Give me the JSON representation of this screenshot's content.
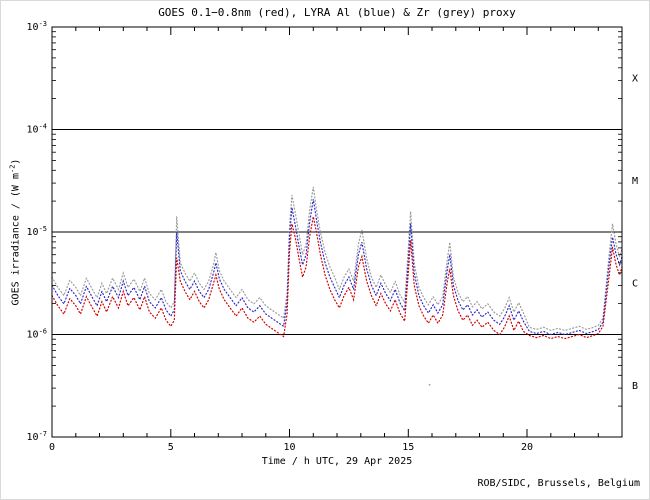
{
  "page": {
    "background": "#ffffff"
  },
  "chart_data": {
    "type": "line",
    "title": "GOES 0.1−0.8nm (red), LYRA Al (blue) & Zr (grey) proxy",
    "xlabel": "Time / h UTC, 29 Apr 2025",
    "ylabel": {
      "prefix": "GOES irradiance / (W m",
      "sup": "-2",
      "suffix": ")"
    },
    "credit": "ROB/SIDC, Brussels, Belgium",
    "axis_color": "#000000",
    "grid": false,
    "legend_position": "in-title",
    "xlim": [
      0,
      24
    ],
    "ylim_log10": [
      -7,
      -3
    ],
    "x_minor_step": 1,
    "x_major_ticks": [
      {
        "value": 0,
        "label": "0"
      },
      {
        "value": 5,
        "label": "5"
      },
      {
        "value": 10,
        "label": "10"
      },
      {
        "value": 15,
        "label": "15"
      },
      {
        "value": 20,
        "label": "20"
      }
    ],
    "y_ticks": [
      {
        "log10": -3,
        "base": "10",
        "exp": "-3"
      },
      {
        "log10": -4,
        "base": "10",
        "exp": "-4"
      },
      {
        "log10": -5,
        "base": "10",
        "exp": "-5"
      },
      {
        "log10": -6,
        "base": "10",
        "exp": "-6"
      },
      {
        "log10": -7,
        "base": "10",
        "exp": "-7"
      }
    ],
    "hlines_log10": [
      -4,
      -5,
      -6
    ],
    "flare_classes": [
      {
        "label": "X",
        "log10": -3.5
      },
      {
        "label": "M",
        "log10": -4.5
      },
      {
        "label": "C",
        "log10": -5.5
      },
      {
        "label": "B",
        "log10": -6.5
      }
    ],
    "x": [
      0.0,
      0.25,
      0.5,
      0.75,
      1.0,
      1.2,
      1.45,
      1.7,
      1.9,
      2.1,
      2.3,
      2.55,
      2.8,
      3.0,
      3.2,
      3.45,
      3.7,
      3.9,
      4.1,
      4.35,
      4.6,
      4.8,
      5.0,
      5.15,
      5.25,
      5.4,
      5.6,
      5.8,
      6.0,
      6.2,
      6.4,
      6.6,
      6.8,
      6.9,
      7.05,
      7.25,
      7.5,
      7.75,
      8.0,
      8.25,
      8.5,
      8.75,
      9.0,
      9.25,
      9.5,
      9.75,
      9.9,
      10.0,
      10.1,
      10.25,
      10.4,
      10.55,
      10.7,
      10.85,
      11.0,
      11.15,
      11.3,
      11.5,
      11.7,
      11.9,
      12.1,
      12.3,
      12.5,
      12.7,
      12.9,
      13.05,
      13.25,
      13.45,
      13.65,
      13.85,
      14.05,
      14.25,
      14.45,
      14.65,
      14.85,
      15.0,
      15.1,
      15.25,
      15.45,
      15.65,
      15.85,
      16.05,
      16.25,
      16.45,
      16.65,
      16.75,
      16.9,
      17.1,
      17.3,
      17.5,
      17.7,
      17.9,
      18.1,
      18.35,
      18.6,
      18.85,
      19.05,
      19.25,
      19.45,
      19.65,
      19.85,
      20.1,
      20.4,
      20.7,
      21.0,
      21.3,
      21.6,
      21.9,
      22.2,
      22.5,
      22.8,
      23.0,
      23.2,
      23.45,
      23.6,
      23.75,
      23.9,
      24.0
    ],
    "series": [
      {
        "id": "goes",
        "name": "GOES 0.1-0.8nm (red)",
        "color": "#d40000",
        "y_log10": [
          -5.62,
          -5.72,
          -5.8,
          -5.65,
          -5.72,
          -5.8,
          -5.63,
          -5.74,
          -5.82,
          -5.68,
          -5.78,
          -5.63,
          -5.74,
          -5.58,
          -5.72,
          -5.64,
          -5.76,
          -5.63,
          -5.78,
          -5.84,
          -5.74,
          -5.86,
          -5.92,
          -5.86,
          -5.25,
          -5.48,
          -5.58,
          -5.66,
          -5.58,
          -5.68,
          -5.74,
          -5.66,
          -5.5,
          -5.42,
          -5.56,
          -5.66,
          -5.74,
          -5.82,
          -5.74,
          -5.84,
          -5.88,
          -5.82,
          -5.9,
          -5.94,
          -5.98,
          -6.02,
          -5.8,
          -5.2,
          -4.92,
          -5.06,
          -5.26,
          -5.44,
          -5.34,
          -5.04,
          -4.85,
          -5.02,
          -5.22,
          -5.42,
          -5.56,
          -5.66,
          -5.74,
          -5.62,
          -5.54,
          -5.66,
          -5.34,
          -5.24,
          -5.48,
          -5.62,
          -5.72,
          -5.6,
          -5.7,
          -5.77,
          -5.66,
          -5.79,
          -5.87,
          -5.4,
          -5.08,
          -5.52,
          -5.72,
          -5.82,
          -5.89,
          -5.81,
          -5.89,
          -5.81,
          -5.48,
          -5.36,
          -5.62,
          -5.77,
          -5.86,
          -5.81,
          -5.91,
          -5.86,
          -5.93,
          -5.88,
          -5.96,
          -6.0,
          -5.93,
          -5.82,
          -5.96,
          -5.87,
          -5.97,
          -6.01,
          -6.03,
          -6.01,
          -6.04,
          -6.02,
          -6.04,
          -6.02,
          -6.0,
          -6.03,
          -6.01,
          -5.99,
          -5.92,
          -5.45,
          -5.15,
          -5.32,
          -5.42,
          -5.34
        ]
      },
      {
        "id": "lyra-al",
        "name": "LYRA Al proxy (blue)",
        "color": "#2c2cc8",
        "y_log10": [
          -5.52,
          -5.62,
          -5.7,
          -5.55,
          -5.62,
          -5.7,
          -5.53,
          -5.64,
          -5.72,
          -5.58,
          -5.68,
          -5.53,
          -5.64,
          -5.48,
          -5.62,
          -5.54,
          -5.66,
          -5.53,
          -5.68,
          -5.74,
          -5.64,
          -5.76,
          -5.82,
          -5.76,
          -5.0,
          -5.38,
          -5.48,
          -5.56,
          -5.48,
          -5.58,
          -5.64,
          -5.56,
          -5.4,
          -5.3,
          -5.46,
          -5.56,
          -5.64,
          -5.72,
          -5.64,
          -5.74,
          -5.78,
          -5.72,
          -5.8,
          -5.84,
          -5.88,
          -5.92,
          -5.68,
          -5.05,
          -4.76,
          -4.94,
          -5.14,
          -5.32,
          -5.22,
          -4.9,
          -4.68,
          -4.9,
          -5.1,
          -5.3,
          -5.44,
          -5.54,
          -5.64,
          -5.52,
          -5.44,
          -5.56,
          -5.22,
          -5.1,
          -5.36,
          -5.52,
          -5.62,
          -5.5,
          -5.6,
          -5.67,
          -5.56,
          -5.69,
          -5.77,
          -5.28,
          -4.92,
          -5.4,
          -5.62,
          -5.72,
          -5.79,
          -5.71,
          -5.79,
          -5.71,
          -5.36,
          -5.22,
          -5.52,
          -5.67,
          -5.76,
          -5.71,
          -5.81,
          -5.76,
          -5.83,
          -5.78,
          -5.86,
          -5.9,
          -5.83,
          -5.72,
          -5.86,
          -5.77,
          -5.87,
          -5.97,
          -5.99,
          -5.97,
          -6.0,
          -5.98,
          -6.0,
          -5.98,
          -5.96,
          -5.99,
          -5.97,
          -5.95,
          -5.88,
          -5.33,
          -5.05,
          -5.22,
          -5.32,
          -5.24
        ]
      },
      {
        "id": "lyra-zr",
        "name": "LYRA Zr proxy (grey)",
        "color": "#9c9c9c",
        "y_log10": [
          -5.44,
          -5.54,
          -5.62,
          -5.47,
          -5.54,
          -5.62,
          -5.45,
          -5.56,
          -5.64,
          -5.5,
          -5.6,
          -5.45,
          -5.56,
          -5.4,
          -5.54,
          -5.46,
          -5.58,
          -5.45,
          -5.6,
          -5.66,
          -5.56,
          -5.68,
          -5.74,
          -5.68,
          -4.85,
          -5.3,
          -5.4,
          -5.48,
          -5.4,
          -5.5,
          -5.56,
          -5.48,
          -5.32,
          -5.2,
          -5.38,
          -5.48,
          -5.56,
          -5.64,
          -5.56,
          -5.66,
          -5.7,
          -5.64,
          -5.72,
          -5.76,
          -5.8,
          -5.84,
          -5.6,
          -4.95,
          -4.64,
          -4.82,
          -5.02,
          -5.22,
          -5.12,
          -4.78,
          -4.56,
          -4.8,
          -5.0,
          -5.2,
          -5.34,
          -5.44,
          -5.56,
          -5.44,
          -5.36,
          -5.48,
          -5.12,
          -4.98,
          -5.26,
          -5.44,
          -5.54,
          -5.42,
          -5.52,
          -5.59,
          -5.48,
          -5.61,
          -5.69,
          -5.16,
          -4.8,
          -5.3,
          -5.54,
          -5.64,
          -5.71,
          -5.63,
          -5.71,
          -5.63,
          -5.26,
          -5.1,
          -5.44,
          -5.59,
          -5.68,
          -5.63,
          -5.73,
          -5.68,
          -5.75,
          -5.7,
          -5.78,
          -5.82,
          -5.75,
          -5.64,
          -5.78,
          -5.69,
          -5.79,
          -5.93,
          -5.95,
          -5.93,
          -5.96,
          -5.94,
          -5.96,
          -5.94,
          -5.92,
          -5.95,
          -5.93,
          -5.91,
          -5.84,
          -5.24,
          -4.92,
          -5.12,
          -5.24,
          -5.16
        ]
      }
    ],
    "outliers": [
      {
        "x": 15.9,
        "log10": -6.49,
        "color": "#9c9c9c"
      }
    ]
  }
}
